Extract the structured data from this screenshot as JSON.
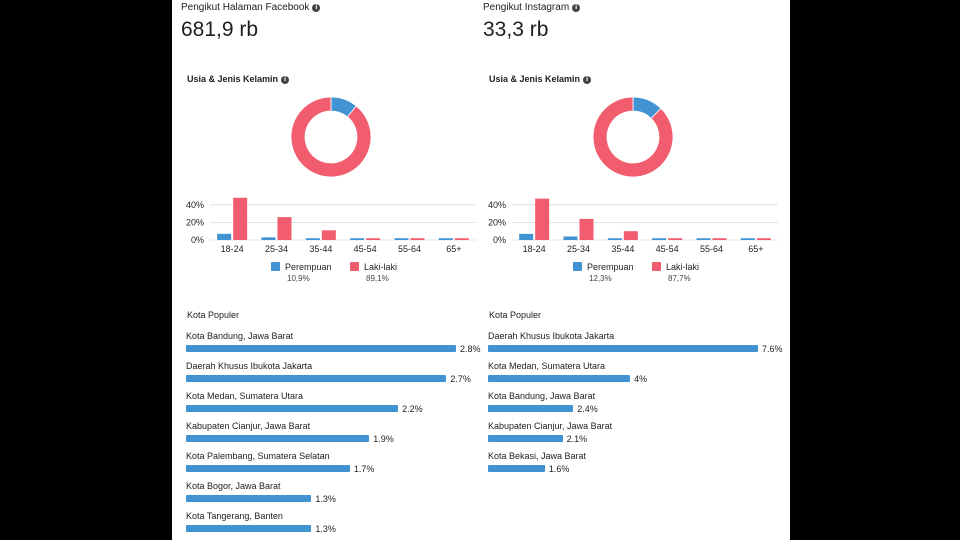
{
  "colors": {
    "female": "#4293d1",
    "male": "#f25c6f",
    "grid": "#dcdcdc",
    "text": "#1c1e21"
  },
  "info_icon": "info-circle-icon",
  "chart_data": [
    {
      "type": "donut",
      "title": "Usia & Jenis Kelamin",
      "slices": [
        {
          "label": "Perempuan",
          "value": 10.9
        },
        {
          "label": "Laki-laki",
          "value": 89.1
        }
      ]
    },
    {
      "type": "bar",
      "title": "Usia & Jenis Kelamin",
      "categories": [
        "18-24",
        "25-34",
        "35-44",
        "45-54",
        "55-64",
        "65+"
      ],
      "series": [
        {
          "name": "Perempuan",
          "values": [
            7,
            3,
            2,
            2,
            2,
            2
          ]
        },
        {
          "name": "Laki-laki",
          "values": [
            48,
            26,
            11,
            2,
            2,
            2
          ]
        }
      ],
      "ylim": [
        0,
        50
      ],
      "yticks": [
        "0%",
        "20%",
        "40%"
      ],
      "ytick_values": [
        0,
        20,
        40
      ],
      "legend": [
        "Perempuan",
        "Laki-laki"
      ],
      "legend_pcts": [
        "10,9%",
        "89,1%"
      ]
    },
    {
      "type": "bar",
      "orientation": "horizontal",
      "title": "Kota Populer",
      "categories": [
        "Kota Bandung, Jawa Barat",
        "Daerah Khusus Ibukota Jakarta",
        "Kota Medan, Sumatera Utara",
        "Kabupaten Cianjur, Jawa Barat",
        "Kota Palembang, Sumatera Selatan",
        "Kota Bogor, Jawa Barat",
        "Kota Tangerang, Banten"
      ],
      "values": [
        2.8,
        2.7,
        2.2,
        1.9,
        1.7,
        1.3,
        1.3
      ],
      "value_labels": [
        "2.8%",
        "2.7%",
        "2.2%",
        "1.9%",
        "1.7%",
        "1.3%",
        "1.3%"
      ]
    },
    {
      "type": "donut",
      "title": "Usia & Jenis Kelamin",
      "slices": [
        {
          "label": "Perempuan",
          "value": 12.3
        },
        {
          "label": "Laki-laki",
          "value": 87.7
        }
      ]
    },
    {
      "type": "bar",
      "title": "Usia & Jenis Kelamin",
      "categories": [
        "18-24",
        "25-34",
        "35-44",
        "45-54",
        "55-64",
        "65+"
      ],
      "series": [
        {
          "name": "Perempuan",
          "values": [
            7,
            4,
            2,
            2,
            2,
            2
          ]
        },
        {
          "name": "Laki-laki",
          "values": [
            47,
            24,
            10,
            2,
            2,
            2
          ]
        }
      ],
      "ylim": [
        0,
        50
      ],
      "yticks": [
        "0%",
        "20%",
        "40%"
      ],
      "ytick_values": [
        0,
        20,
        40
      ],
      "legend": [
        "Perempuan",
        "Laki-laki"
      ],
      "legend_pcts": [
        "12,3%",
        "87,7%"
      ]
    },
    {
      "type": "bar",
      "orientation": "horizontal",
      "title": "Kota Populer",
      "categories": [
        "Daerah Khusus Ibukota Jakarta",
        "Kota Medan, Sumatera Utara",
        "Kota Bandung, Jawa Barat",
        "Kabupaten Cianjur, Jawa Barat",
        "Kota Bekasi, Jawa Barat"
      ],
      "values": [
        7.6,
        4,
        2.4,
        2.1,
        1.6
      ],
      "value_labels": [
        "7.6%",
        "4%",
        "2.4%",
        "2.1%",
        "1.6%"
      ]
    }
  ],
  "facebook": {
    "header": "Pengikut Halaman Facebook",
    "followers": "681,9 rb"
  },
  "instagram": {
    "header": "Pengikut Instagram",
    "followers": "33,3 rb"
  }
}
